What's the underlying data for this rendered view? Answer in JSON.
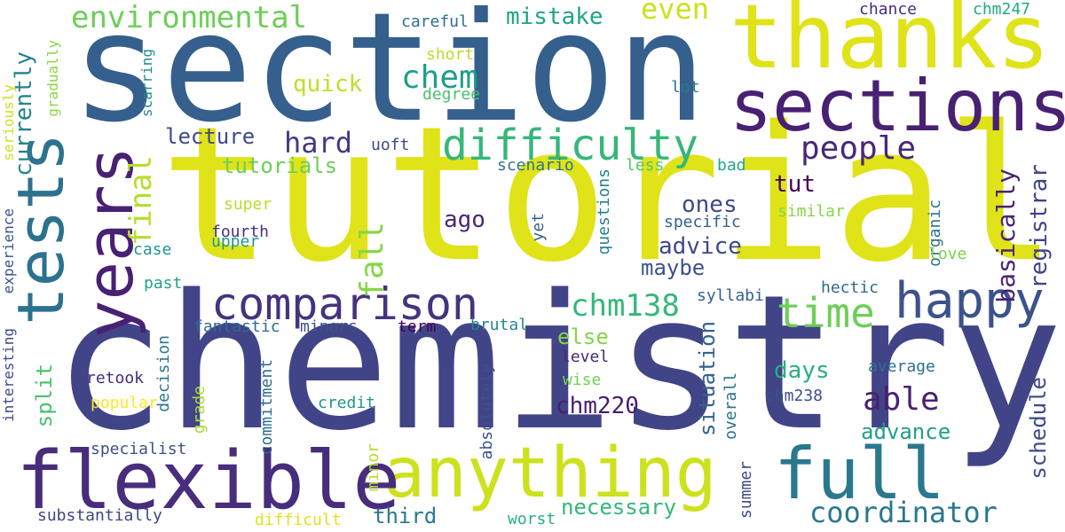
{
  "words": [
    {
      "text": "section",
      "color": "#355f8d"
    },
    {
      "text": "tutorial",
      "color": "#dfe318"
    },
    {
      "text": "chemistry",
      "color": "#414487"
    },
    {
      "text": "thanks",
      "color": "#dfe318"
    },
    {
      "text": "sections",
      "color": "#482173"
    },
    {
      "text": "tests",
      "color": "#2c728e"
    },
    {
      "text": "years",
      "color": "#482173"
    },
    {
      "text": "anything",
      "color": "#cde11d"
    },
    {
      "text": "flexible",
      "color": "#472d7b"
    },
    {
      "text": "full",
      "color": "#2a788e"
    },
    {
      "text": "comparison",
      "color": "#46337e"
    },
    {
      "text": "difficulty",
      "color": "#35b779"
    },
    {
      "text": "happy",
      "color": "#3b528b"
    },
    {
      "text": "time",
      "color": "#6ece58"
    },
    {
      "text": "environmental",
      "color": "#6ece58"
    },
    {
      "text": "people",
      "color": "#482878"
    },
    {
      "text": "chem",
      "color": "#1f9e89"
    },
    {
      "text": "hard",
      "color": "#443983"
    },
    {
      "text": "fall",
      "color": "#86d549"
    },
    {
      "text": "final",
      "color": "#b5de2b"
    },
    {
      "text": "chm138",
      "color": "#35b779"
    },
    {
      "text": "able",
      "color": "#482173"
    },
    {
      "text": "coordinator",
      "color": "#2a788e"
    },
    {
      "text": "chm220",
      "color": "#481f70"
    },
    {
      "text": "even",
      "color": "#cde11d"
    },
    {
      "text": "mistake",
      "color": "#20a486"
    },
    {
      "text": "quick",
      "color": "#bddf26"
    },
    {
      "text": "currently",
      "color": "#25848e"
    },
    {
      "text": "lecture",
      "color": "#3e4a89"
    },
    {
      "text": "tutorials",
      "color": "#6ece58"
    },
    {
      "text": "ago",
      "color": "#482878"
    },
    {
      "text": "ones",
      "color": "#3f4889"
    },
    {
      "text": "tut",
      "color": "#440154"
    },
    {
      "text": "basically",
      "color": "#482475"
    },
    {
      "text": "registrar",
      "color": "#414487"
    },
    {
      "text": "advice",
      "color": "#3f4889"
    },
    {
      "text": "maybe",
      "color": "#3b528b"
    },
    {
      "text": "necessary",
      "color": "#35b779"
    },
    {
      "text": "third",
      "color": "#2a788e"
    },
    {
      "text": "advance",
      "color": "#1fa088"
    },
    {
      "text": "schedule",
      "color": "#3e4a89"
    },
    {
      "text": "situation",
      "color": "#33638d"
    },
    {
      "text": "days",
      "color": "#29af7f"
    },
    {
      "text": "else",
      "color": "#84d44b"
    },
    {
      "text": "split",
      "color": "#4ac16d"
    },
    {
      "text": "careful",
      "color": "#2d708e"
    },
    {
      "text": "chance",
      "color": "#472c7a"
    },
    {
      "text": "chm247",
      "color": "#22a884"
    },
    {
      "text": "short",
      "color": "#b8de29"
    },
    {
      "text": "degree",
      "color": "#48c16e"
    },
    {
      "text": "lot",
      "color": "#2a788e"
    },
    {
      "text": "uoft",
      "color": "#3e4a89"
    },
    {
      "text": "scenario",
      "color": "#2a768e"
    },
    {
      "text": "less",
      "color": "#54c568"
    },
    {
      "text": "bad",
      "color": "#22a785"
    },
    {
      "text": "super",
      "color": "#b5de2b"
    },
    {
      "text": "fourth",
      "color": "#46327e"
    },
    {
      "text": "upper",
      "color": "#1f988b"
    },
    {
      "text": "case",
      "color": "#1f968b"
    },
    {
      "text": "specific",
      "color": "#33638d"
    },
    {
      "text": "similar",
      "color": "#86d549"
    },
    {
      "text": "organic",
      "color": "#2c728e"
    },
    {
      "text": "love",
      "color": "#7ad151"
    },
    {
      "text": "questions",
      "color": "#27808e"
    },
    {
      "text": "yet",
      "color": "#33638d"
    },
    {
      "text": "past",
      "color": "#20a386"
    },
    {
      "text": "syllabi",
      "color": "#355f8d"
    },
    {
      "text": "hectic",
      "color": "#31688e"
    },
    {
      "text": "fantastic",
      "color": "#31688e"
    },
    {
      "text": "minors",
      "color": "#3b528b"
    },
    {
      "text": "term",
      "color": "#440154"
    },
    {
      "text": "brutal",
      "color": "#24878e"
    },
    {
      "text": "level",
      "color": "#482878"
    },
    {
      "text": "retook",
      "color": "#472d7b"
    },
    {
      "text": "decision",
      "color": "#2a788e"
    },
    {
      "text": "average",
      "color": "#2c718e"
    },
    {
      "text": "wise",
      "color": "#75d054"
    },
    {
      "text": "popular",
      "color": "#fde725"
    },
    {
      "text": "credit",
      "color": "#1f988b"
    },
    {
      "text": "chm238",
      "color": "#3b528b"
    },
    {
      "text": "absolutely",
      "color": "#3b528b"
    },
    {
      "text": "overall",
      "color": "#2c718e"
    },
    {
      "text": "grade",
      "color": "#a8db34"
    },
    {
      "text": "commitment",
      "color": "#2e6e8e"
    },
    {
      "text": "specialist",
      "color": "#3b528b"
    },
    {
      "text": "minor",
      "color": "#b5de2b"
    },
    {
      "text": "summer",
      "color": "#3e4a89"
    },
    {
      "text": "substantially",
      "color": "#414487"
    },
    {
      "text": "difficult",
      "color": "#dfe318"
    },
    {
      "text": "worst",
      "color": "#29af7f"
    },
    {
      "text": "seriously",
      "color": "#cde11d"
    },
    {
      "text": "gradually",
      "color": "#8bd646"
    },
    {
      "text": "scarring",
      "color": "#238a8d"
    },
    {
      "text": "experience",
      "color": "#3b528b"
    },
    {
      "text": "interesting",
      "color": "#3e4a89"
    }
  ]
}
